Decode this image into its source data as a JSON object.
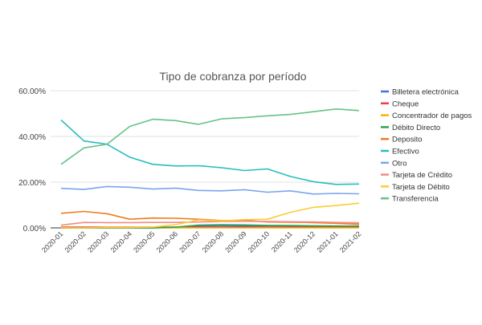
{
  "chart_data": {
    "type": "line",
    "title": "Tipo de cobranza por período",
    "xlabel": "",
    "ylabel": "",
    "ylim": [
      0,
      60
    ],
    "y_ticks": [
      "0.00%",
      "20.00%",
      "40.00%",
      "60.00%"
    ],
    "y_tick_values": [
      0,
      20,
      40,
      60
    ],
    "grid": true,
    "legend_position": "right",
    "categories": [
      "2020-01",
      "2020-02",
      "2020-03",
      "2020-04",
      "2020-05",
      "2020-06",
      "2020-07",
      "2020-08",
      "2020-09",
      "2020-10",
      "2020-11",
      "2020-12",
      "2021-01",
      "2021-02"
    ],
    "series": [
      {
        "name": "Billetera electrónica",
        "color": "#4473d9",
        "values": [
          0,
          0,
          0,
          0,
          0,
          0.3,
          0.8,
          0.9,
          0.8,
          0.9,
          0.8,
          0.8,
          0.8,
          0.8
        ]
      },
      {
        "name": "Cheque",
        "color": "#e8453c",
        "values": [
          0.3,
          0.3,
          0.3,
          0.3,
          0.3,
          0.3,
          0.3,
          0.3,
          0.3,
          0.3,
          0.3,
          0.3,
          0.3,
          0.3
        ]
      },
      {
        "name": "Concentrador de pagos",
        "color": "#f6b400",
        "values": [
          0,
          0,
          0,
          0,
          0,
          0,
          0,
          0,
          0,
          0,
          0,
          0,
          0,
          0
        ]
      },
      {
        "name": "Débito Directo",
        "color": "#2aa552",
        "values": [
          0,
          0,
          0,
          0,
          0,
          0.3,
          1.2,
          1.4,
          1.3,
          1.1,
          1.0,
          0.9,
          0.8,
          0.7
        ]
      },
      {
        "name": "Deposito",
        "color": "#f07b1f",
        "values": [
          6.4,
          7.2,
          6.2,
          3.8,
          4.3,
          4.2,
          3.8,
          3.2,
          3.3,
          2.6,
          2.5,
          2.3,
          2.0,
          1.6
        ]
      },
      {
        "name": "Efectivo",
        "color": "#28bdbd",
        "values": [
          47.2,
          38.0,
          36.6,
          30.9,
          27.8,
          27.1,
          27.2,
          26.3,
          25.1,
          25.8,
          22.5,
          20.2,
          19.0,
          19.2
        ]
      },
      {
        "name": "Otro",
        "color": "#7aa4ee",
        "values": [
          17.3,
          16.8,
          18.1,
          17.8,
          17.0,
          17.4,
          16.4,
          16.2,
          16.7,
          15.6,
          16.2,
          14.8,
          15.1,
          14.9
        ]
      },
      {
        "name": "Tarjeta de Crédito",
        "color": "#f28b82",
        "values": [
          1.2,
          2.4,
          2.3,
          2.3,
          2.4,
          2.4,
          2.6,
          2.8,
          2.9,
          2.8,
          2.7,
          2.6,
          2.4,
          2.2
        ]
      },
      {
        "name": "Tarjeta de Débito",
        "color": "#fbcc35",
        "values": [
          0,
          0,
          0.2,
          0.2,
          0.4,
          1.4,
          3.5,
          3.0,
          3.6,
          3.8,
          6.8,
          9.0,
          9.8,
          10.8
        ]
      },
      {
        "name": "Transferencia",
        "color": "#67c286",
        "values": [
          27.8,
          35.0,
          36.6,
          44.4,
          47.5,
          46.9,
          45.3,
          47.7,
          48.2,
          49.0,
          49.6,
          50.8,
          52.0,
          51.3
        ]
      }
    ]
  }
}
